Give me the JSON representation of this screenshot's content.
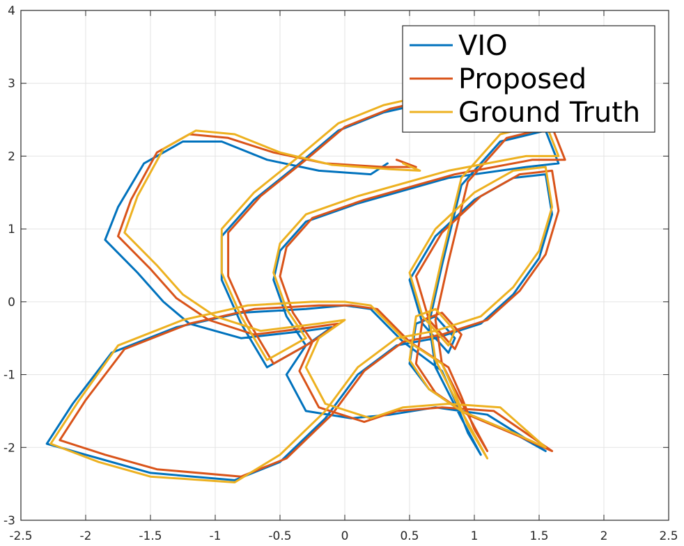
{
  "chart_data": {
    "type": "line",
    "title": "",
    "xlabel": "",
    "ylabel": "",
    "xlim": [
      -2.5,
      2.5
    ],
    "ylim": [
      -3,
      4
    ],
    "xticks": [
      "-2.5",
      "-2",
      "-1.5",
      "-1",
      "-0.5",
      "0",
      "0.5",
      "1",
      "1.5",
      "2",
      "2.5"
    ],
    "yticks": [
      "-3",
      "-2",
      "-1",
      "0",
      "1",
      "2",
      "3",
      "4"
    ],
    "grid": true,
    "legend_position": "top-right",
    "series": [
      {
        "name": "VIO",
        "color": "#0072BD",
        "points": [
          [
            0.33,
            1.9
          ],
          [
            0.2,
            1.75
          ],
          [
            -0.2,
            1.8
          ],
          [
            -0.6,
            1.95
          ],
          [
            -0.95,
            2.2
          ],
          [
            -1.25,
            2.2
          ],
          [
            -1.55,
            1.9
          ],
          [
            -1.75,
            1.3
          ],
          [
            -1.85,
            0.85
          ],
          [
            -1.6,
            0.4
          ],
          [
            -1.4,
            0.0
          ],
          [
            -1.2,
            -0.3
          ],
          [
            -0.8,
            -0.5
          ],
          [
            -0.3,
            -0.4
          ],
          [
            -0.1,
            -0.35
          ],
          [
            -0.3,
            -0.6
          ],
          [
            -0.45,
            -1.0
          ],
          [
            -0.3,
            -1.5
          ],
          [
            0.05,
            -1.6
          ],
          [
            0.35,
            -1.55
          ],
          [
            0.7,
            -1.45
          ],
          [
            1.1,
            -1.55
          ],
          [
            1.55,
            -2.05
          ],
          [
            1.3,
            -1.8
          ],
          [
            0.9,
            -1.5
          ],
          [
            0.65,
            -1.2
          ],
          [
            0.5,
            -0.85
          ],
          [
            0.55,
            -0.3
          ],
          [
            0.7,
            -0.2
          ],
          [
            0.85,
            -0.5
          ],
          [
            0.8,
            -0.7
          ],
          [
            0.6,
            -0.3
          ],
          [
            0.5,
            0.3
          ],
          [
            0.7,
            0.9
          ],
          [
            1.0,
            1.4
          ],
          [
            1.3,
            1.7
          ],
          [
            1.55,
            1.75
          ],
          [
            1.6,
            1.2
          ],
          [
            1.5,
            0.6
          ],
          [
            1.3,
            0.1
          ],
          [
            1.05,
            -0.3
          ],
          [
            0.7,
            -0.5
          ],
          [
            0.4,
            -0.6
          ],
          [
            0.1,
            -1.0
          ],
          [
            -0.15,
            -1.6
          ],
          [
            -0.5,
            -2.2
          ],
          [
            -0.85,
            -2.45
          ],
          [
            -1.5,
            -2.35
          ],
          [
            -1.9,
            -2.15
          ],
          [
            -2.3,
            -1.95
          ],
          [
            -2.1,
            -1.4
          ],
          [
            -1.8,
            -0.7
          ],
          [
            -1.3,
            -0.35
          ],
          [
            -0.8,
            -0.15
          ],
          [
            -0.3,
            -0.1
          ],
          [
            0.0,
            -0.05
          ],
          [
            0.2,
            -0.1
          ],
          [
            0.45,
            -0.55
          ],
          [
            0.75,
            -0.95
          ],
          [
            0.85,
            -1.35
          ],
          [
            0.95,
            -1.8
          ],
          [
            1.05,
            -2.1
          ],
          [
            0.9,
            -1.6
          ],
          [
            0.7,
            -0.9
          ],
          [
            0.65,
            -0.3
          ],
          [
            0.75,
            0.5
          ],
          [
            0.9,
            1.6
          ],
          [
            1.2,
            2.2
          ],
          [
            1.55,
            2.35
          ],
          [
            1.65,
            1.9
          ],
          [
            1.4,
            1.85
          ],
          [
            0.8,
            1.7
          ],
          [
            0.1,
            1.35
          ],
          [
            -0.3,
            1.1
          ],
          [
            -0.5,
            0.7
          ],
          [
            -0.55,
            0.3
          ],
          [
            -0.45,
            -0.2
          ],
          [
            -0.3,
            -0.6
          ],
          [
            -0.6,
            -0.9
          ],
          [
            -0.8,
            -0.3
          ],
          [
            -0.95,
            0.3
          ],
          [
            -0.95,
            0.9
          ],
          [
            -0.7,
            1.4
          ],
          [
            -0.35,
            1.9
          ],
          [
            -0.05,
            2.35
          ],
          [
            0.3,
            2.6
          ],
          [
            0.55,
            2.7
          ]
        ]
      },
      {
        "name": "Proposed",
        "color": "#D95319",
        "points": [
          [
            0.4,
            1.95
          ],
          [
            0.55,
            1.85
          ],
          [
            0.3,
            1.85
          ],
          [
            -0.15,
            1.9
          ],
          [
            -0.55,
            2.05
          ],
          [
            -0.9,
            2.25
          ],
          [
            -1.2,
            2.3
          ],
          [
            -1.45,
            2.05
          ],
          [
            -1.65,
            1.4
          ],
          [
            -1.75,
            0.9
          ],
          [
            -1.5,
            0.45
          ],
          [
            -1.3,
            0.05
          ],
          [
            -1.05,
            -0.25
          ],
          [
            -0.7,
            -0.45
          ],
          [
            -0.25,
            -0.35
          ],
          [
            -0.05,
            -0.3
          ],
          [
            -0.25,
            -0.55
          ],
          [
            -0.35,
            -0.95
          ],
          [
            -0.2,
            -1.45
          ],
          [
            0.15,
            -1.65
          ],
          [
            0.4,
            -1.5
          ],
          [
            0.75,
            -1.45
          ],
          [
            1.15,
            -1.5
          ],
          [
            1.6,
            -2.05
          ],
          [
            1.35,
            -1.85
          ],
          [
            0.95,
            -1.55
          ],
          [
            0.7,
            -1.25
          ],
          [
            0.55,
            -0.85
          ],
          [
            0.6,
            -0.25
          ],
          [
            0.75,
            -0.15
          ],
          [
            0.9,
            -0.45
          ],
          [
            0.85,
            -0.65
          ],
          [
            0.65,
            -0.25
          ],
          [
            0.55,
            0.35
          ],
          [
            0.75,
            0.95
          ],
          [
            1.05,
            1.45
          ],
          [
            1.35,
            1.75
          ],
          [
            1.6,
            1.8
          ],
          [
            1.65,
            1.25
          ],
          [
            1.55,
            0.65
          ],
          [
            1.35,
            0.15
          ],
          [
            1.1,
            -0.25
          ],
          [
            0.75,
            -0.45
          ],
          [
            0.45,
            -0.55
          ],
          [
            0.15,
            -0.95
          ],
          [
            -0.1,
            -1.55
          ],
          [
            -0.45,
            -2.15
          ],
          [
            -0.8,
            -2.4
          ],
          [
            -1.45,
            -2.3
          ],
          [
            -1.85,
            -2.1
          ],
          [
            -2.2,
            -1.9
          ],
          [
            -2.0,
            -1.35
          ],
          [
            -1.7,
            -0.65
          ],
          [
            -1.2,
            -0.3
          ],
          [
            -0.7,
            -0.1
          ],
          [
            -0.2,
            -0.05
          ],
          [
            0.05,
            -0.05
          ],
          [
            0.25,
            -0.1
          ],
          [
            0.5,
            -0.55
          ],
          [
            0.8,
            -0.9
          ],
          [
            0.9,
            -1.3
          ],
          [
            1.0,
            -1.75
          ],
          [
            1.1,
            -2.05
          ],
          [
            0.95,
            -1.55
          ],
          [
            0.75,
            -0.85
          ],
          [
            0.7,
            -0.25
          ],
          [
            0.8,
            0.55
          ],
          [
            0.95,
            1.65
          ],
          [
            1.25,
            2.25
          ],
          [
            1.6,
            2.4
          ],
          [
            1.7,
            1.95
          ],
          [
            1.45,
            1.95
          ],
          [
            0.85,
            1.75
          ],
          [
            0.15,
            1.4
          ],
          [
            -0.25,
            1.15
          ],
          [
            -0.45,
            0.75
          ],
          [
            -0.5,
            0.35
          ],
          [
            -0.4,
            -0.15
          ],
          [
            -0.25,
            -0.55
          ],
          [
            -0.55,
            -0.85
          ],
          [
            -0.75,
            -0.25
          ],
          [
            -0.9,
            0.35
          ],
          [
            -0.9,
            0.95
          ],
          [
            -0.65,
            1.45
          ],
          [
            -0.3,
            1.95
          ],
          [
            0.0,
            2.4
          ],
          [
            0.35,
            2.65
          ],
          [
            0.6,
            2.75
          ]
        ]
      },
      {
        "name": "Ground Truth",
        "color": "#EDB120",
        "points": [
          [
            0.45,
            1.9
          ],
          [
            0.58,
            1.8
          ],
          [
            0.35,
            1.82
          ],
          [
            -0.1,
            1.88
          ],
          [
            -0.5,
            2.05
          ],
          [
            -0.85,
            2.3
          ],
          [
            -1.15,
            2.35
          ],
          [
            -1.4,
            2.1
          ],
          [
            -1.6,
            1.45
          ],
          [
            -1.7,
            0.95
          ],
          [
            -1.45,
            0.5
          ],
          [
            -1.25,
            0.1
          ],
          [
            -1.0,
            -0.2
          ],
          [
            -0.65,
            -0.4
          ],
          [
            -0.2,
            -0.3
          ],
          [
            0.0,
            -0.25
          ],
          [
            -0.2,
            -0.5
          ],
          [
            -0.3,
            -0.9
          ],
          [
            -0.15,
            -1.4
          ],
          [
            0.2,
            -1.6
          ],
          [
            0.45,
            -1.45
          ],
          [
            0.8,
            -1.4
          ],
          [
            1.2,
            -1.45
          ],
          [
            1.55,
            -2.0
          ],
          [
            1.3,
            -1.8
          ],
          [
            0.9,
            -1.5
          ],
          [
            0.65,
            -1.2
          ],
          [
            0.5,
            -0.8
          ],
          [
            0.55,
            -0.2
          ],
          [
            0.7,
            -0.1
          ],
          [
            0.85,
            -0.4
          ],
          [
            0.8,
            -0.6
          ],
          [
            0.6,
            -0.2
          ],
          [
            0.5,
            0.4
          ],
          [
            0.7,
            1.0
          ],
          [
            1.0,
            1.5
          ],
          [
            1.3,
            1.8
          ],
          [
            1.55,
            1.85
          ],
          [
            1.6,
            1.3
          ],
          [
            1.5,
            0.7
          ],
          [
            1.3,
            0.2
          ],
          [
            1.05,
            -0.2
          ],
          [
            0.7,
            -0.4
          ],
          [
            0.4,
            -0.5
          ],
          [
            0.1,
            -0.9
          ],
          [
            -0.15,
            -1.5
          ],
          [
            -0.5,
            -2.1
          ],
          [
            -0.85,
            -2.48
          ],
          [
            -1.5,
            -2.4
          ],
          [
            -1.9,
            -2.2
          ],
          [
            -2.27,
            -1.95
          ],
          [
            -2.05,
            -1.35
          ],
          [
            -1.75,
            -0.6
          ],
          [
            -1.25,
            -0.25
          ],
          [
            -0.75,
            -0.05
          ],
          [
            -0.25,
            0.0
          ],
          [
            0.0,
            0.0
          ],
          [
            0.2,
            -0.05
          ],
          [
            0.45,
            -0.5
          ],
          [
            0.75,
            -0.85
          ],
          [
            0.85,
            -1.25
          ],
          [
            0.95,
            -1.7
          ],
          [
            1.1,
            -2.15
          ],
          [
            0.9,
            -1.5
          ],
          [
            0.7,
            -0.8
          ],
          [
            0.65,
            -0.2
          ],
          [
            0.75,
            0.6
          ],
          [
            0.9,
            1.7
          ],
          [
            1.2,
            2.3
          ],
          [
            1.55,
            2.45
          ],
          [
            1.65,
            2.0
          ],
          [
            1.4,
            2.0
          ],
          [
            0.8,
            1.8
          ],
          [
            0.1,
            1.45
          ],
          [
            -0.3,
            1.2
          ],
          [
            -0.5,
            0.8
          ],
          [
            -0.55,
            0.4
          ],
          [
            -0.45,
            -0.1
          ],
          [
            -0.3,
            -0.5
          ],
          [
            -0.6,
            -0.8
          ],
          [
            -0.8,
            -0.2
          ],
          [
            -0.95,
            0.4
          ],
          [
            -0.95,
            1.0
          ],
          [
            -0.7,
            1.5
          ],
          [
            -0.35,
            2.0
          ],
          [
            -0.05,
            2.45
          ],
          [
            0.3,
            2.7
          ],
          [
            0.55,
            2.8
          ]
        ]
      }
    ]
  }
}
